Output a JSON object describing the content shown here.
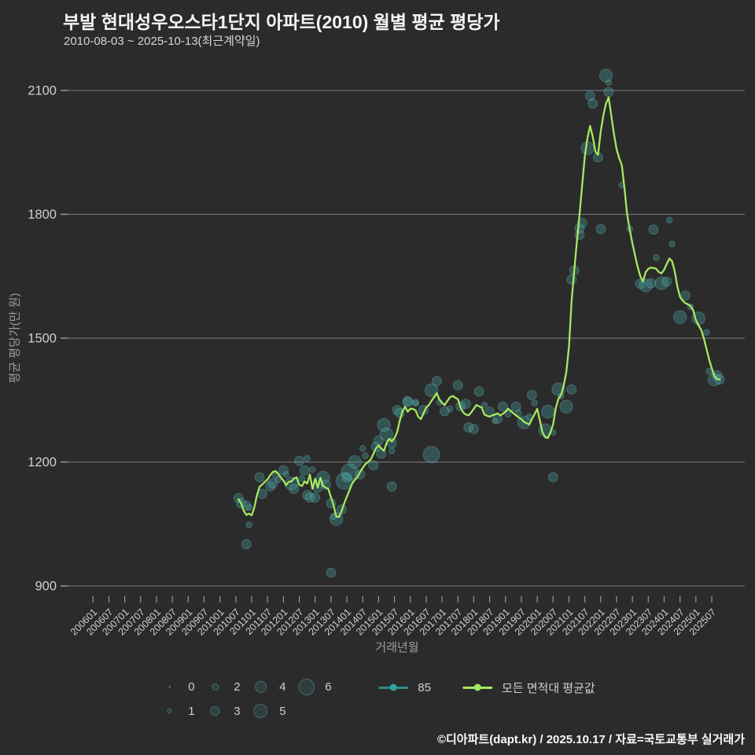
{
  "header": {
    "title": "부발 현대성우오스타1단지 아파트(2010) 월별 평균 평당가",
    "subtitle": "2010-08-03 ~ 2025-10-13(최근계약일)"
  },
  "footer": {
    "credit": "©디아파트(dapt.kr) / 2025.10.17 / 자료=국토교통부 실거래가"
  },
  "legend": {
    "size_rows": [
      [
        0,
        2,
        4,
        6
      ],
      [
        1,
        3,
        5
      ]
    ],
    "series": [
      {
        "label": "85",
        "color": "#2e8c8c"
      },
      {
        "label": "모든 면적대 평균값",
        "color": "#a6e861"
      }
    ]
  },
  "colors": {
    "background": "#2b2b2b",
    "grid": "#7d7d7d",
    "tick": "#9a9a9a",
    "tick_label": "#cfcfcf",
    "axis_title": "#9c9c9c",
    "line": "#a6e861",
    "bubble_fill": "rgba(72,178,178,0.30)",
    "bubble_stroke": "rgba(140,225,225,0.25)"
  },
  "chart_data": {
    "type": "scatter",
    "title": "부발 현대성우오스타1단지 아파트(2010) 월별 평균 평당가",
    "subtitle": "2010-08-03 ~ 2025-10-13(최근계약일)",
    "xlabel": "거래년월",
    "ylabel": "평균 평당가(만 원)",
    "ylim": [
      900,
      2100
    ],
    "y_ticks": [
      900,
      1200,
      1500,
      1800,
      2100
    ],
    "x_ticks": [
      "200601",
      "200607",
      "200701",
      "200707",
      "200801",
      "200807",
      "200901",
      "200907",
      "201001",
      "201007",
      "201101",
      "201107",
      "201201",
      "201207",
      "201301",
      "201307",
      "201401",
      "201407",
      "201501",
      "201507",
      "201601",
      "201607",
      "201701",
      "201707",
      "201801",
      "201807",
      "201901",
      "201907",
      "202001",
      "202007",
      "202101",
      "202107",
      "202201",
      "202207",
      "202301",
      "202307",
      "202401",
      "202407",
      "202501",
      "202507"
    ],
    "grid": true,
    "legend_position": "bottom",
    "bubble_size_values": [
      0,
      1,
      2,
      3,
      4,
      5,
      6
    ],
    "series": [
      {
        "name": "85",
        "type": "bubble",
        "note": "월별 평균 평당가(만 원), 버블 크기=거래 건수",
        "points": [
          [
            "201008",
            1113,
            2
          ],
          [
            "201009",
            1100,
            2
          ],
          [
            "201011",
            1094,
            2
          ],
          [
            "201011",
            1001,
            2
          ],
          [
            "201012",
            1090,
            1
          ],
          [
            "201012",
            1048,
            1
          ],
          [
            "201104",
            1163,
            2
          ],
          [
            "201105",
            1123,
            2
          ],
          [
            "201108",
            1141,
            2
          ],
          [
            "201109",
            1148,
            2
          ],
          [
            "201110",
            1167,
            1
          ],
          [
            "201111",
            1157,
            1
          ],
          [
            "201201",
            1180,
            2
          ],
          [
            "201202",
            1170,
            1
          ],
          [
            "201204",
            1148,
            3
          ],
          [
            "201205",
            1135,
            2
          ],
          [
            "201207",
            1203,
            2
          ],
          [
            "201208",
            1160,
            1
          ],
          [
            "201209",
            1180,
            2
          ],
          [
            "201210",
            1209,
            1
          ],
          [
            "201210",
            1120,
            2
          ],
          [
            "201211",
            1114,
            2
          ],
          [
            "201212",
            1182,
            1
          ],
          [
            "201301",
            1114,
            2
          ],
          [
            "201302",
            1138,
            2
          ],
          [
            "201304",
            1162,
            3
          ],
          [
            "201305",
            1145,
            2
          ],
          [
            "201307",
            1100,
            2
          ],
          [
            "201307",
            932,
            2
          ],
          [
            "201308",
            1068,
            1
          ],
          [
            "201309",
            1062,
            3
          ],
          [
            "201311",
            1085,
            2
          ],
          [
            "201312",
            1154,
            4
          ],
          [
            "201401",
            1163,
            2
          ],
          [
            "201402",
            1176,
            4
          ],
          [
            "201404",
            1200,
            3
          ],
          [
            "201406",
            1170,
            2
          ],
          [
            "201407",
            1233,
            1
          ],
          [
            "201408",
            1215,
            1
          ],
          [
            "201411",
            1192,
            2
          ],
          [
            "201412",
            1237,
            2
          ],
          [
            "201501",
            1252,
            2
          ],
          [
            "201502",
            1220,
            2
          ],
          [
            "201503",
            1290,
            3
          ],
          [
            "201504",
            1267,
            3
          ],
          [
            "201506",
            1227,
            1
          ],
          [
            "201506",
            1246,
            2
          ],
          [
            "201506",
            1141,
            2
          ],
          [
            "201508",
            1326,
            2
          ],
          [
            "201509",
            1319,
            2
          ],
          [
            "201512",
            1348,
            2
          ],
          [
            "201512",
            1345,
            2
          ],
          [
            "201603",
            1342,
            1
          ],
          [
            "201603",
            1345,
            1
          ],
          [
            "201606",
            1326,
            2
          ],
          [
            "201609",
            1374,
            3
          ],
          [
            "201609",
            1218,
            4
          ],
          [
            "201611",
            1396,
            2
          ],
          [
            "201612",
            1345,
            1
          ],
          [
            "201702",
            1323,
            2
          ],
          [
            "201704",
            1329,
            1
          ],
          [
            "201707",
            1386,
            2
          ],
          [
            "201708",
            1335,
            2
          ],
          [
            "201710",
            1341,
            2
          ],
          [
            "201711",
            1284,
            2
          ],
          [
            "201801",
            1280,
            2
          ],
          [
            "201803",
            1371,
            2
          ],
          [
            "201805",
            1338,
            1
          ],
          [
            "201807",
            1322,
            2
          ],
          [
            "201809",
            1300,
            1
          ],
          [
            "201810",
            1305,
            2
          ],
          [
            "201812",
            1334,
            2
          ],
          [
            "201902",
            1316,
            1
          ],
          [
            "201905",
            1334,
            2
          ],
          [
            "201906",
            1319,
            1
          ],
          [
            "201908",
            1296,
            3
          ],
          [
            "201910",
            1310,
            1
          ],
          [
            "201911",
            1362,
            2
          ],
          [
            "201912",
            1343,
            1
          ],
          [
            "202004",
            1277,
            3
          ],
          [
            "202005",
            1322,
            3
          ],
          [
            "202007",
            1163,
            2
          ],
          [
            "202007",
            1272,
            1
          ],
          [
            "202009",
            1376,
            3
          ],
          [
            "202010",
            1360,
            1
          ],
          [
            "202012",
            1334,
            3
          ],
          [
            "202102",
            1376,
            2
          ],
          [
            "202102",
            1642,
            2
          ],
          [
            "202103",
            1664,
            2
          ],
          [
            "202105",
            1750,
            2
          ],
          [
            "202105",
            1766,
            2
          ],
          [
            "202106",
            1779,
            2
          ],
          [
            "202108",
            1960,
            3
          ],
          [
            "202109",
            2087,
            2
          ],
          [
            "202110",
            2068,
            2
          ],
          [
            "202112",
            1938,
            2
          ],
          [
            "202201",
            1764,
            2
          ],
          [
            "202203",
            2136,
            3
          ],
          [
            "202204",
            2119,
            1
          ],
          [
            "202204",
            2096,
            2
          ],
          [
            "202209",
            1871,
            1
          ],
          [
            "202212",
            1765,
            1
          ],
          [
            "202304",
            1632,
            2
          ],
          [
            "202306",
            1628,
            3
          ],
          [
            "202308",
            1633,
            2
          ],
          [
            "202309",
            1763,
            2
          ],
          [
            "202310",
            1695,
            1
          ],
          [
            "202312",
            1633,
            3
          ],
          [
            "202402",
            1637,
            2
          ],
          [
            "202403",
            1786,
            1
          ],
          [
            "202404",
            1728,
            1
          ],
          [
            "202407",
            1551,
            3
          ],
          [
            "202409",
            1603,
            2
          ],
          [
            "202411",
            1576,
            1
          ],
          [
            "202502",
            1548,
            3
          ],
          [
            "202505",
            1514,
            1
          ],
          [
            "202506",
            1420,
            1
          ],
          [
            "202508",
            1400,
            3
          ],
          [
            "202509",
            1410,
            2
          ],
          [
            "202510",
            1400,
            2
          ]
        ]
      },
      {
        "name": "모든 면적대 평균값",
        "type": "line",
        "start_month": "201008",
        "values": [
          1110,
          1100,
          1082,
          1072,
          1075,
          1071,
          1090,
          1120,
          1140,
          1146,
          1152,
          1158,
          1168,
          1176,
          1178,
          1172,
          1163,
          1155,
          1144,
          1152,
          1153,
          1160,
          1163,
          1145,
          1142,
          1153,
          1148,
          1170,
          1135,
          1160,
          1138,
          1162,
          1142,
          1138,
          1135,
          1114,
          1095,
          1068,
          1067,
          1081,
          1100,
          1116,
          1132,
          1148,
          1157,
          1163,
          1176,
          1186,
          1195,
          1200,
          1206,
          1219,
          1233,
          1240,
          1233,
          1227,
          1246,
          1256,
          1250,
          1258,
          1272,
          1300,
          1322,
          1334,
          1322,
          1329,
          1329,
          1325,
          1310,
          1304,
          1318,
          1332,
          1338,
          1348,
          1357,
          1367,
          1351,
          1343,
          1338,
          1348,
          1357,
          1360,
          1356,
          1352,
          1332,
          1320,
          1315,
          1313,
          1320,
          1329,
          1338,
          1335,
          1332,
          1315,
          1312,
          1310,
          1313,
          1315,
          1318,
          1313,
          1317,
          1322,
          1329,
          1324,
          1318,
          1313,
          1308,
          1304,
          1297,
          1294,
          1291,
          1304,
          1316,
          1329,
          1300,
          1272,
          1260,
          1258,
          1272,
          1291,
          1330,
          1353,
          1362,
          1385,
          1418,
          1480,
          1590,
          1665,
          1733,
          1800,
          1872,
          1940,
          1985,
          2014,
          1988,
          1952,
          1944,
          2000,
          2040,
          2068,
          2083,
          2040,
          1995,
          1958,
          1936,
          1919,
          1862,
          1800,
          1762,
          1730,
          1700,
          1672,
          1650,
          1637,
          1660,
          1668,
          1671,
          1670,
          1668,
          1660,
          1657,
          1666,
          1680,
          1693,
          1686,
          1662,
          1625,
          1600,
          1591,
          1585,
          1582,
          1578,
          1567,
          1544,
          1531,
          1520,
          1500,
          1474,
          1449,
          1427,
          1408,
          1401,
          1400
        ]
      }
    ]
  }
}
